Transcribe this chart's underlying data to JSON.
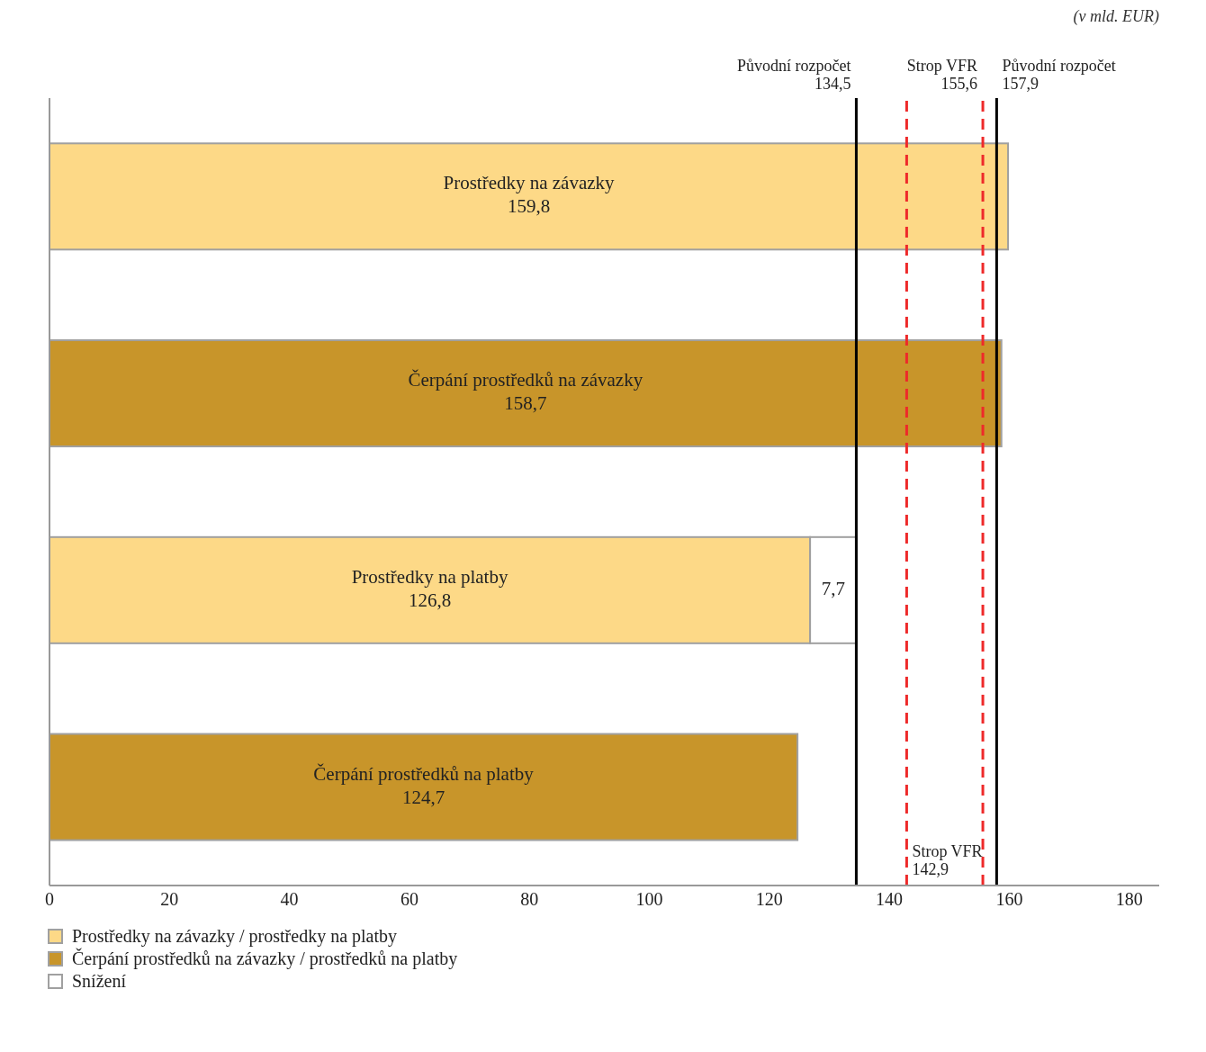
{
  "chart_data": {
    "type": "bar",
    "orientation": "horizontal",
    "stacked": true,
    "categories": [
      "Prostředky na závazky",
      "Čerpání prostředků na závazky",
      "Prostředky na platby",
      "Čerpání prostředků na platby"
    ],
    "series": [
      {
        "name": "Prostředky na závazky / prostředky na platby",
        "color": "#fdd987",
        "values": [
          159.8,
          null,
          126.8,
          null
        ],
        "value_labels": [
          "159,8",
          null,
          "126,8",
          null
        ]
      },
      {
        "name": "Čerpání prostředků na závazky / prostředků na platby",
        "color": "#c8952a",
        "values": [
          null,
          158.7,
          null,
          124.7
        ],
        "value_labels": [
          null,
          "158,7",
          null,
          "124,7"
        ]
      },
      {
        "name": "Snížení",
        "color": "#ffffff",
        "values": [
          null,
          null,
          7.7,
          null
        ],
        "value_labels": [
          null,
          null,
          "7,7",
          null
        ]
      }
    ],
    "xlim": [
      0,
      185
    ],
    "xticks": [
      0,
      20,
      40,
      60,
      80,
      100,
      120,
      140,
      160,
      180
    ],
    "tick_labels": "x",
    "grid": false,
    "legend": "bottom left",
    "ref_lines": [
      {
        "axis": "x",
        "value": 155.6,
        "label": "Strop VFR 155,6",
        "color": "#ee2a2a",
        "line_style": "dashed"
      },
      {
        "axis": "x",
        "value": 157.9,
        "label": "Původní rozpočet 157,9",
        "color": "#000000",
        "line_style": "solid"
      },
      {
        "axis": "x",
        "value": 134.5,
        "label": "Původní rozpočet 134,5",
        "color": "#000000",
        "line_style": "solid"
      },
      {
        "axis": "x",
        "value": 142.9,
        "label": "Strop VFR 142,9",
        "color": "#ee2a2a",
        "line_style": "dashed"
      }
    ],
    "annotations": [
      "(v mld. EUR)"
    ]
  }
}
